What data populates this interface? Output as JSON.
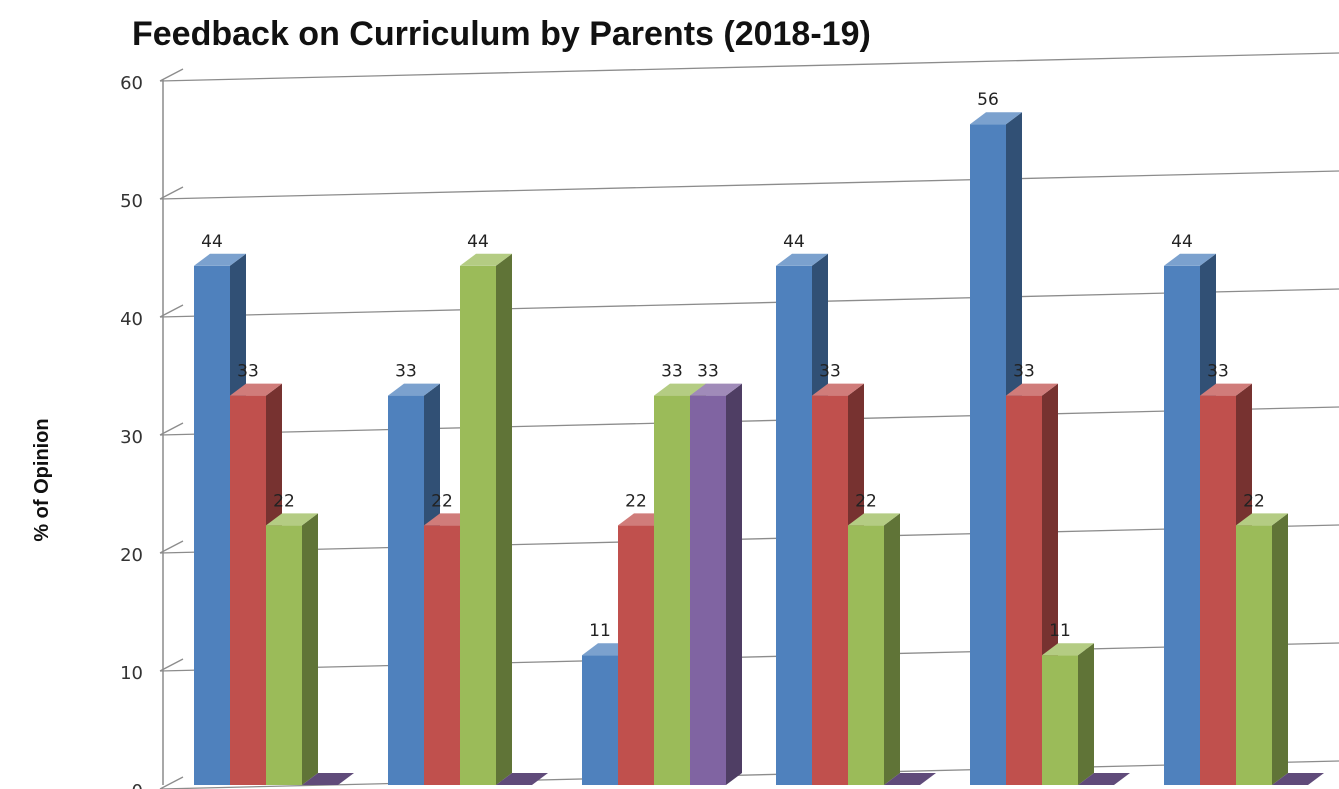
{
  "chart_data": {
    "type": "bar",
    "title": "Feedback on Curriculum by Parents (2018-19)",
    "xlabel": "",
    "ylabel": "% of Opinion",
    "ylim": [
      0,
      60
    ],
    "y_ticks": [
      0,
      10,
      20,
      30,
      40,
      50,
      60
    ],
    "grid": true,
    "three_d": true,
    "categories": [
      "",
      "",
      "",
      "",
      "",
      ""
    ],
    "series": [
      {
        "values": [
          44,
          33,
          11,
          44,
          56,
          44
        ],
        "color": "#4F81BD"
      },
      {
        "values": [
          33,
          22,
          22,
          33,
          33,
          33
        ],
        "color": "#C0504D"
      },
      {
        "values": [
          22,
          44,
          33,
          22,
          11,
          22
        ],
        "color": "#9BBB59"
      },
      {
        "values": [
          0,
          0,
          33,
          0,
          0,
          0
        ],
        "color": "#8064A2"
      }
    ]
  }
}
